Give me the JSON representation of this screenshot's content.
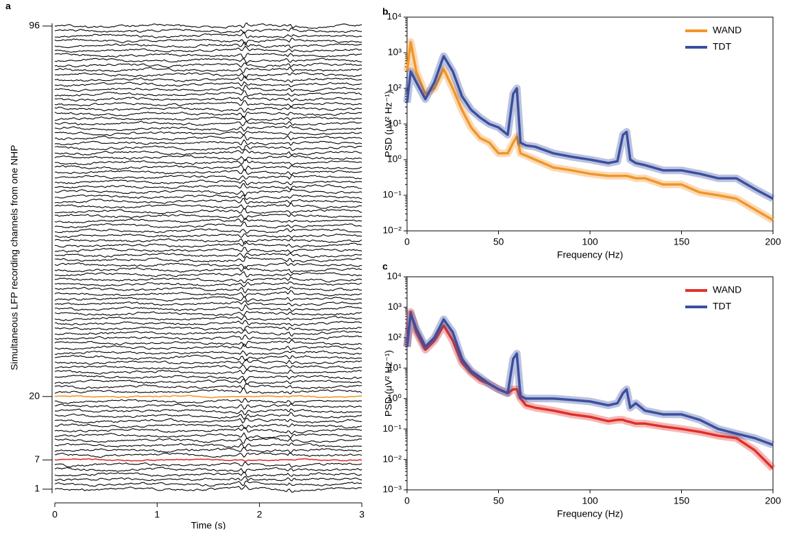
{
  "chart_data": [
    {
      "type": "traces",
      "panel_label": "a",
      "ylabel": "Simultaneous LFP recording channels from one NHP",
      "xlabel": "Time (s)",
      "xlim": [
        0,
        3
      ],
      "xticks": [
        0,
        1,
        2,
        3
      ],
      "ylim": [
        1,
        96
      ],
      "yticks": [
        1,
        7,
        20,
        96
      ],
      "ytick_colors": [
        "#000000",
        "#e0302a",
        "#f0962a",
        "#000000"
      ]
    },
    {
      "type": "line",
      "panel_label": "b",
      "log_y": true,
      "legend": "upper right",
      "ylabel": "PSD (μV² Hz⁻¹)",
      "xlabel": "Frequency (Hz)",
      "xlim": [
        0,
        200
      ],
      "xticks": [
        0,
        50,
        100,
        150,
        200
      ],
      "ylim": [
        0.01,
        10000
      ],
      "yticks": [
        {
          "value": 0.01,
          "label": "10⁻²"
        },
        {
          "value": 0.1,
          "label": "10⁻¹"
        },
        {
          "value": 1,
          "label": "10⁰"
        },
        {
          "value": 10,
          "label": "10¹"
        },
        {
          "value": 100,
          "label": "10²"
        },
        {
          "value": 1000,
          "label": "10³"
        },
        {
          "value": 10000,
          "label": "10⁴"
        }
      ],
      "x": [
        0,
        2,
        5,
        10,
        15,
        20,
        25,
        30,
        35,
        40,
        45,
        50,
        55,
        58,
        60,
        62,
        65,
        70,
        80,
        90,
        100,
        110,
        115,
        118,
        120,
        122,
        125,
        130,
        140,
        150,
        160,
        170,
        180,
        190,
        200
      ],
      "series": [
        {
          "name": "WAND",
          "color": "#f0962a",
          "values": [
            300,
            2000,
            300,
            70,
            100,
            350,
            100,
            25,
            8,
            4,
            3,
            1.5,
            1.5,
            3,
            4.5,
            1.5,
            1.3,
            1.0,
            0.6,
            0.5,
            0.4,
            0.35,
            0.35,
            0.35,
            0.35,
            0.33,
            0.3,
            0.3,
            0.2,
            0.2,
            0.12,
            0.1,
            0.08,
            0.04,
            0.02
          ]
        },
        {
          "name": "TDT",
          "color": "#3b4fa0",
          "values": [
            40,
            300,
            150,
            50,
            150,
            800,
            300,
            60,
            25,
            15,
            10,
            8,
            5,
            70,
            100,
            3,
            2.5,
            2.3,
            1.5,
            1.2,
            1.0,
            0.8,
            0.9,
            5,
            6,
            1.0,
            0.8,
            0.7,
            0.5,
            0.5,
            0.4,
            0.3,
            0.3,
            0.15,
            0.08
          ]
        }
      ]
    },
    {
      "type": "line",
      "panel_label": "c",
      "log_y": true,
      "legend": "upper right",
      "ylabel": "PSD (μV² Hz⁻¹)",
      "xlabel": "Frequency (Hz)",
      "xlim": [
        0,
        200
      ],
      "xticks": [
        0,
        50,
        100,
        150,
        200
      ],
      "ylim": [
        0.001,
        10000
      ],
      "yticks": [
        {
          "value": 0.001,
          "label": "10⁻³"
        },
        {
          "value": 0.01,
          "label": "10⁻²"
        },
        {
          "value": 0.1,
          "label": "10⁻¹"
        },
        {
          "value": 1,
          "label": "10⁰"
        },
        {
          "value": 10,
          "label": "10¹"
        },
        {
          "value": 100,
          "label": "10²"
        },
        {
          "value": 1000,
          "label": "10³"
        },
        {
          "value": 10000,
          "label": "10⁴"
        }
      ],
      "x": [
        0,
        2,
        5,
        10,
        15,
        20,
        25,
        30,
        35,
        40,
        45,
        50,
        55,
        58,
        60,
        62,
        65,
        70,
        80,
        90,
        100,
        110,
        115,
        118,
        120,
        122,
        125,
        130,
        140,
        150,
        160,
        170,
        180,
        190,
        200
      ],
      "series": [
        {
          "name": "WAND",
          "color": "#e0302a",
          "values": [
            50,
            700,
            150,
            40,
            80,
            250,
            80,
            15,
            7,
            4,
            3,
            2,
            1.5,
            2,
            2,
            1.0,
            0.6,
            0.5,
            0.4,
            0.3,
            0.25,
            0.18,
            0.2,
            0.2,
            0.18,
            0.17,
            0.15,
            0.15,
            0.12,
            0.1,
            0.08,
            0.06,
            0.05,
            0.02,
            0.005
          ]
        },
        {
          "name": "TDT",
          "color": "#3b4fa0",
          "values": [
            50,
            600,
            200,
            50,
            100,
            400,
            150,
            20,
            8,
            5,
            3,
            2,
            1.5,
            20,
            30,
            1.2,
            1.0,
            1.0,
            1.0,
            0.9,
            0.8,
            0.6,
            0.7,
            1.5,
            2,
            0.5,
            0.7,
            0.4,
            0.3,
            0.3,
            0.2,
            0.1,
            0.07,
            0.05,
            0.03
          ]
        }
      ]
    }
  ]
}
